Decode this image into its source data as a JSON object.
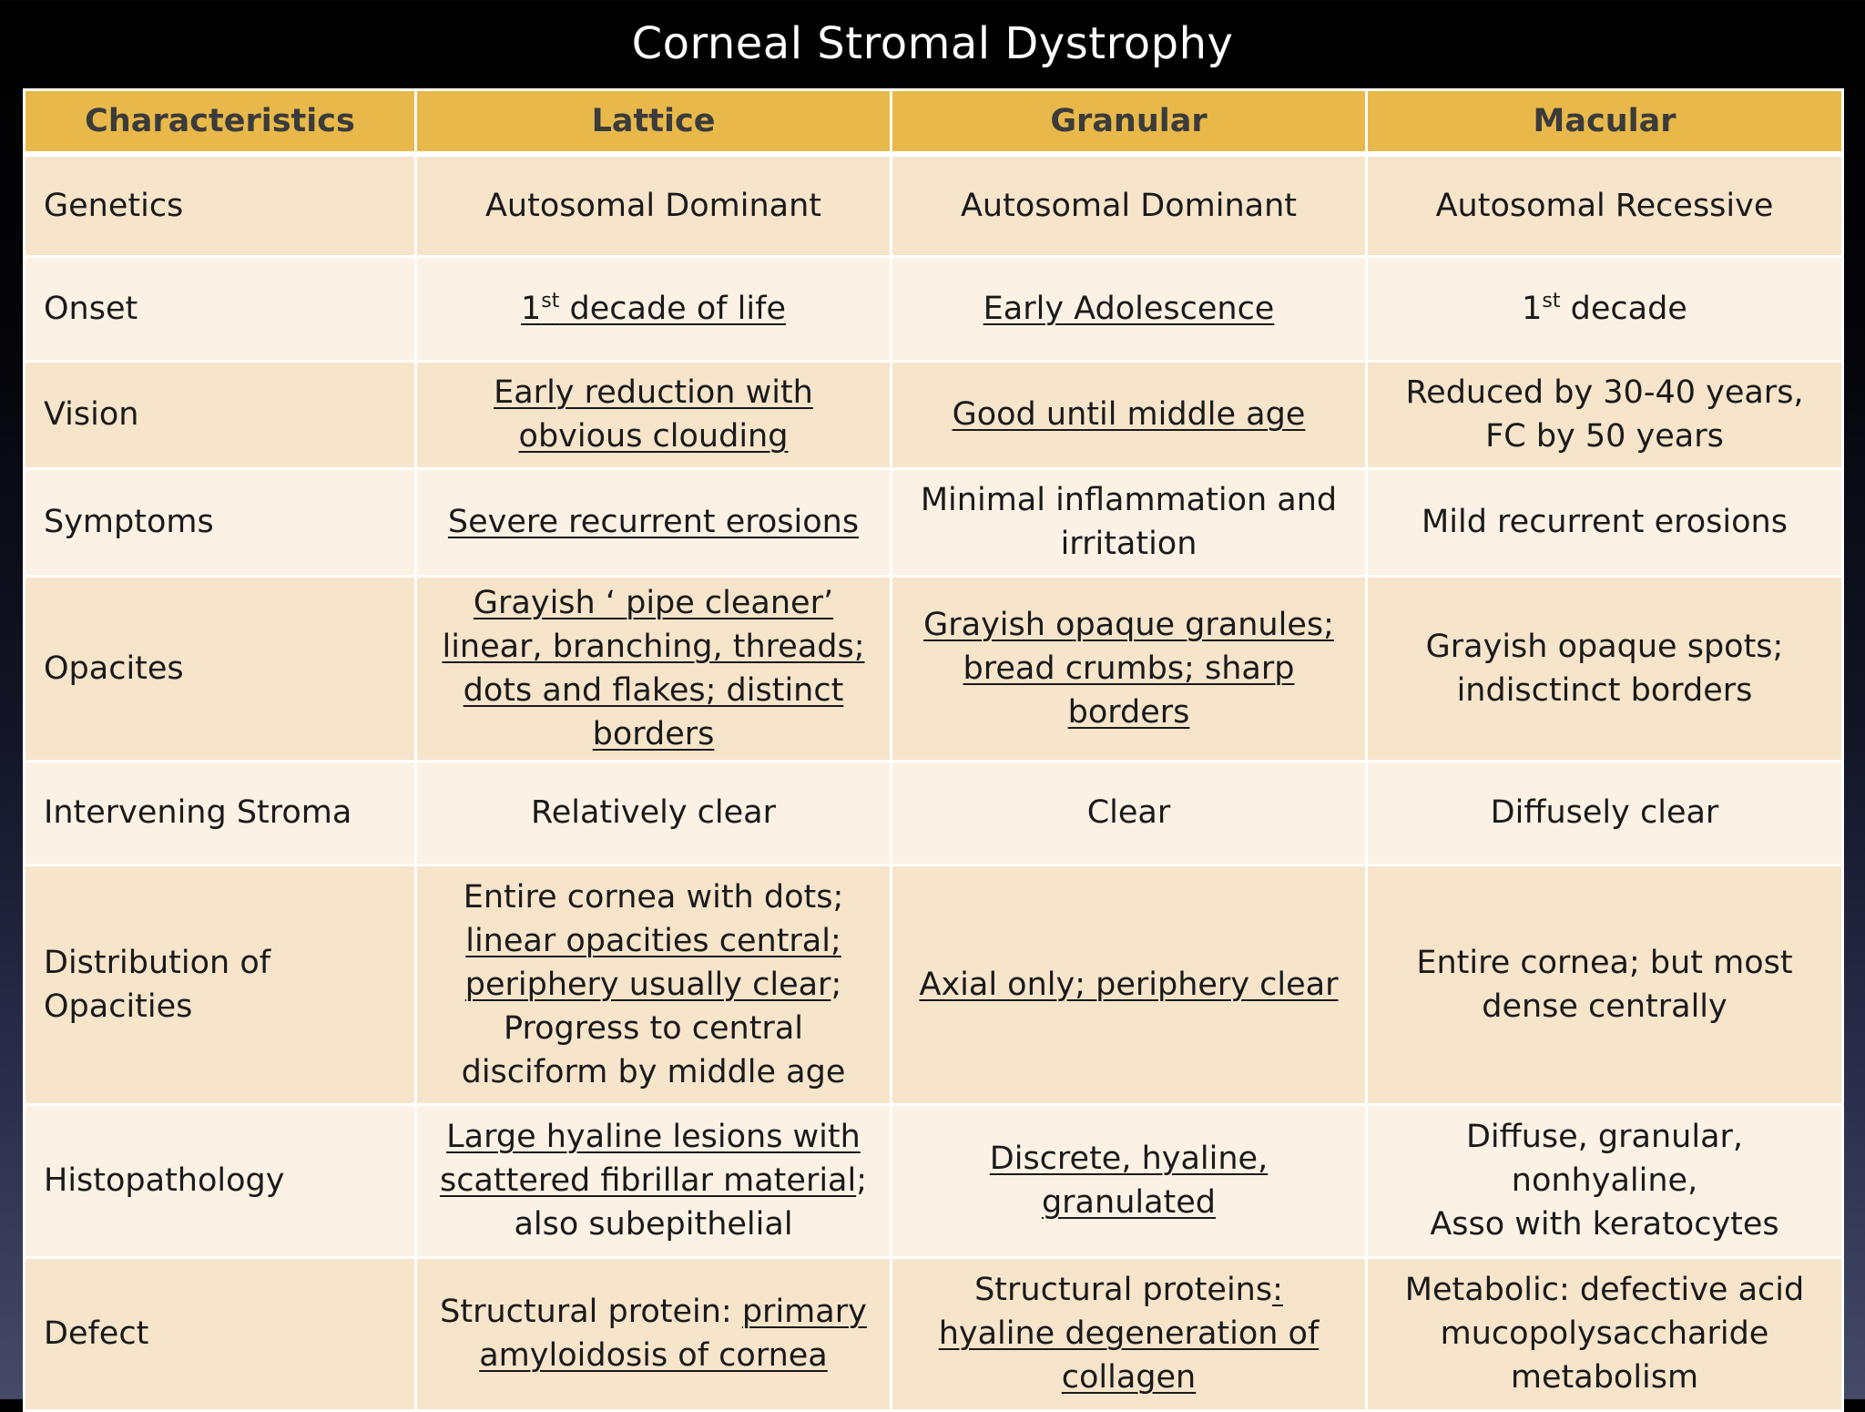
{
  "title": "Corneal Stromal Dystrophy",
  "headers": [
    "Characteristics",
    "Lattice",
    "Granular",
    "Macular"
  ],
  "rows": [
    {
      "label": "Genetics",
      "lattice": "Autosomal Dominant",
      "granular": "Autosomal Dominant",
      "macular": "Autosomal Recessive"
    },
    {
      "label": "Onset",
      "lattice_num": "1",
      "lattice_sup": "st",
      "lattice_rest": " decade of life",
      "granular": "Early Adolescence",
      "macular_num": "1",
      "macular_sup": "st",
      "macular_rest": " decade"
    },
    {
      "label": "Vision",
      "lattice": "Early reduction with obvious clouding",
      "granular": "Good until middle age",
      "macular": "Reduced by 30-40 years, FC by 50 years"
    },
    {
      "label": "Symptoms",
      "lattice": "Severe recurrent erosions",
      "granular": "Minimal inflammation and irritation",
      "macular": "Mild recurrent erosions"
    },
    {
      "label": "Opacites",
      "lattice": "Grayish ‘ pipe cleaner’ linear, branching, threads; dots and flakes; distinct borders",
      "granular": "Grayish opaque granules; bread crumbs; sharp borders",
      "macular": "Grayish opaque spots; indisctinct borders"
    },
    {
      "label": "Intervening Stroma",
      "lattice": "Relatively clear",
      "granular": "Clear",
      "macular": "Diffusely clear"
    },
    {
      "label_1": "Distribution of",
      "label_2": "Opacities",
      "lattice_1": "Entire cornea with dots;",
      "lattice_2": "linear opacities central;",
      "lattice_3": "periphery usually clear",
      "lattice_3b": ";",
      "lattice_4": "Progress to central disciform by middle age",
      "granular": "Axial only; periphery clear",
      "macular": "Entire cornea; but most dense centrally"
    },
    {
      "label": "Histopathology",
      "lattice_1": "Large hyaline lesions with scattered fibrillar material",
      "lattice_1b": ";",
      "lattice_2": "also subepithelial",
      "granular": "Discrete, hyaline, granulated",
      "macular_1": "Diffuse, granular,",
      "macular_2": "nonhyaline,",
      "macular_3": "Asso with keratocytes"
    },
    {
      "label": "Defect",
      "lattice_a": "Structural protein: ",
      "lattice_b": "primary amyloidosis of cornea",
      "granular_a": "Structural proteins",
      "granular_b": ": hyaline degeneration of collagen",
      "macular": "Metabolic: defective acid mucopolysaccharide metabolism"
    }
  ]
}
